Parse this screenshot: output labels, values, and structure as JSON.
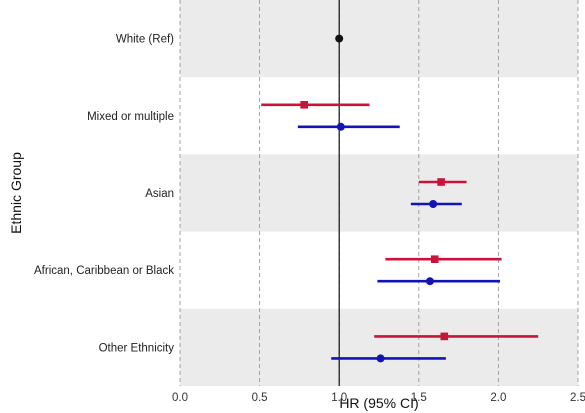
{
  "chart_data": {
    "type": "forest",
    "title": "",
    "xlabel": "HR (95% CI)",
    "ylabel": "Ethnic Group",
    "xlim": [
      0,
      2.5
    ],
    "xticks": [
      "0.0",
      "0.5",
      "1.0",
      "1.5",
      "2.0",
      "2.5"
    ],
    "reference_line": 1.0,
    "grid": "vertical dashed",
    "categories": [
      "White (Ref)",
      "Mixed or multiple",
      "Asian",
      "African, Caribbean or Black",
      "Other Ethnicity"
    ],
    "series": [
      {
        "marker": "square",
        "color": "#c8143c",
        "points": [
          {
            "category": "Mixed or multiple",
            "hr": 0.78,
            "lo": 0.51,
            "hi": 1.19
          },
          {
            "category": "Asian",
            "hr": 1.64,
            "lo": 1.5,
            "hi": 1.8
          },
          {
            "category": "African, Caribbean or Black",
            "hr": 1.6,
            "lo": 1.29,
            "hi": 2.02
          },
          {
            "category": "Other Ethnicity",
            "hr": 1.66,
            "lo": 1.22,
            "hi": 2.25
          }
        ]
      },
      {
        "marker": "circle",
        "color": "#1414b4",
        "points": [
          {
            "category": "White (Ref)",
            "hr": 1.0
          },
          {
            "category": "Mixed or multiple",
            "hr": 1.01,
            "lo": 0.74,
            "hi": 1.38
          },
          {
            "category": "Asian",
            "hr": 1.59,
            "lo": 1.45,
            "hi": 1.77
          },
          {
            "category": "African, Caribbean or Black",
            "hr": 1.57,
            "lo": 1.24,
            "hi": 2.01
          },
          {
            "category": "Other Ethnicity",
            "hr": 1.26,
            "lo": 0.95,
            "hi": 1.67
          }
        ]
      }
    ],
    "colors": {
      "band_shade": "#ebebeb",
      "reference_series": "#111111"
    }
  }
}
